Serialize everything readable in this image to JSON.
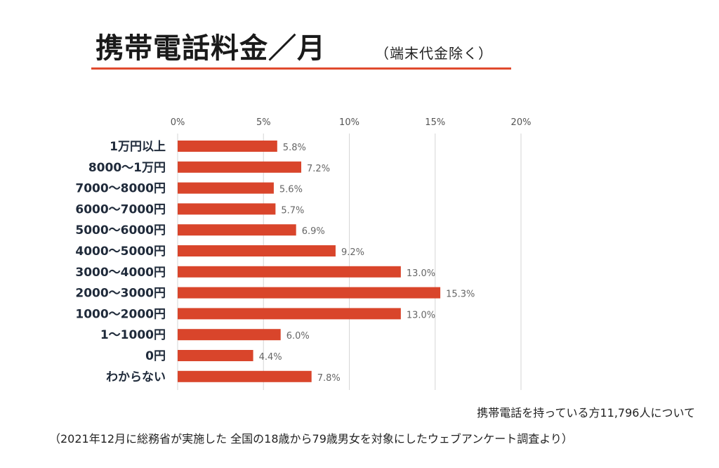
{
  "header": {
    "title": "携帯電話料金／月",
    "subtitle": "（端末代金除く）"
  },
  "chart_data": {
    "type": "bar",
    "orientation": "horizontal",
    "categories": [
      "1万円以上",
      "8000〜1万円",
      "7000〜8000円",
      "6000〜7000円",
      "5000〜6000円",
      "4000〜5000円",
      "3000〜4000円",
      "2000〜3000円",
      "1000〜2000円",
      "1〜1000円",
      "0円",
      "わからない"
    ],
    "values": [
      5.8,
      7.2,
      5.6,
      5.7,
      6.9,
      9.2,
      13.0,
      15.3,
      13.0,
      6.0,
      4.4,
      7.8
    ],
    "value_labels": [
      "5.8%",
      "7.2%",
      "5.6%",
      "5.7%",
      "6.9%",
      "9.2%",
      "13.0%",
      "15.3%",
      "13.0%",
      "6.0%",
      "4.4%",
      "7.8%"
    ],
    "xlim": [
      0,
      20
    ],
    "x_ticks": [
      0,
      5,
      10,
      15,
      20
    ],
    "x_tick_labels": [
      "0%",
      "5%",
      "10%",
      "15%",
      "20%"
    ],
    "grid": "vertical",
    "bar_color": "#d9452b"
  },
  "notes": {
    "respondents": "携帯電話を持っている方11,796人について",
    "source": "（2021年12月に総務省が実施した 全国の18歳から79歳男女を対象にしたウェブアンケート調査より）"
  }
}
